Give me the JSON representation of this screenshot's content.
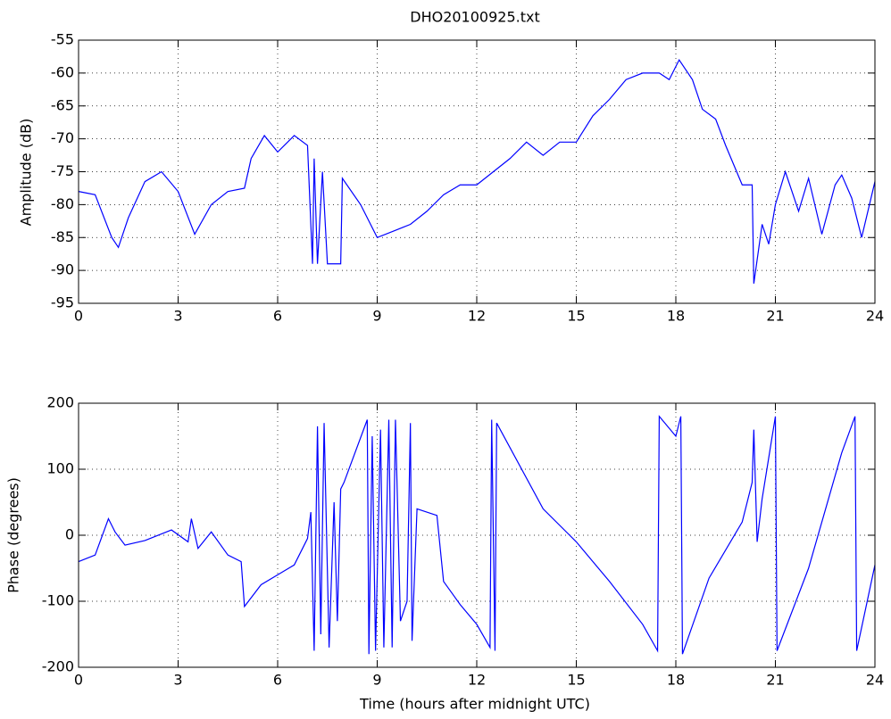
{
  "chart_data": [
    {
      "type": "line",
      "title": "DHO20100925.txt",
      "y_label": "Amplitude (dB)",
      "color": "#0000ff",
      "grid": true,
      "xlim": [
        0,
        24
      ],
      "xticks": [
        0,
        3,
        6,
        9,
        12,
        15,
        18,
        21,
        24
      ],
      "ylim": [
        -95,
        -55
      ],
      "yticks": [
        -95,
        -90,
        -85,
        -80,
        -75,
        -70,
        -65,
        -60,
        -55
      ],
      "x": [
        0,
        0.5,
        1.0,
        1.2,
        1.5,
        2.0,
        2.5,
        3.0,
        3.5,
        4.0,
        4.5,
        5.0,
        5.2,
        5.6,
        6.0,
        6.5,
        6.9,
        7.05,
        7.1,
        7.2,
        7.35,
        7.5,
        7.9,
        7.95,
        8.5,
        9.0,
        9.5,
        10.0,
        10.5,
        11.0,
        11.5,
        12.0,
        12.5,
        13.0,
        13.5,
        14.0,
        14.5,
        15.0,
        15.5,
        16.0,
        16.5,
        17.0,
        17.5,
        17.8,
        18.1,
        18.5,
        18.8,
        19.2,
        19.5,
        20.0,
        20.3,
        20.35,
        20.6,
        20.8,
        21.0,
        21.3,
        21.7,
        22.0,
        22.4,
        22.8,
        23.0,
        23.3,
        23.6,
        24.0
      ],
      "values": [
        -78,
        -78.5,
        -85,
        -86.5,
        -82,
        -76.5,
        -75,
        -78,
        -84.5,
        -80,
        -78,
        -77.5,
        -73,
        -69.5,
        -72,
        -69.5,
        -71,
        -89,
        -73,
        -89,
        -75,
        -89,
        -89,
        -76,
        -80,
        -85,
        -84,
        -83,
        -81,
        -78.5,
        -77,
        -77,
        -75,
        -73,
        -70.5,
        -72.5,
        -70.5,
        -70.5,
        -66.5,
        -64,
        -61,
        -60,
        -60,
        -61,
        -58,
        -61,
        -65.5,
        -67,
        -71,
        -77,
        -77,
        -92,
        -83,
        -86,
        -80,
        -75,
        -81,
        -76,
        -84.5,
        -77,
        -75.5,
        -79,
        -85,
        -76.5
      ]
    },
    {
      "type": "line",
      "x_label": "Time (hours after midnight UTC)",
      "y_label": "Phase (degrees)",
      "color": "#0000ff",
      "grid": true,
      "xlim": [
        0,
        24
      ],
      "xticks": [
        0,
        3,
        6,
        9,
        12,
        15,
        18,
        21,
        24
      ],
      "ylim": [
        -200,
        200
      ],
      "yticks": [
        -200,
        -100,
        0,
        100,
        200
      ],
      "x": [
        0,
        0.5,
        0.9,
        1.1,
        1.4,
        2.0,
        2.8,
        3.3,
        3.4,
        3.6,
        4.0,
        4.5,
        4.9,
        5.0,
        5.5,
        6.0,
        6.5,
        6.9,
        7.0,
        7.1,
        7.2,
        7.3,
        7.4,
        7.55,
        7.7,
        7.8,
        7.9,
        8.0,
        8.7,
        8.75,
        8.85,
        8.95,
        9.1,
        9.2,
        9.35,
        9.45,
        9.55,
        9.7,
        9.9,
        10.0,
        10.05,
        10.2,
        10.8,
        11.0,
        11.5,
        12.0,
        12.4,
        12.45,
        12.55,
        12.6,
        14.0,
        15.0,
        16.0,
        17.0,
        17.45,
        17.5,
        18.0,
        18.15,
        18.2,
        19.0,
        20.0,
        20.3,
        20.35,
        20.45,
        20.6,
        21.0,
        21.05,
        22.0,
        23.0,
        23.4,
        23.45,
        24.0
      ],
      "values": [
        -40,
        -30,
        25,
        5,
        -15,
        -8,
        8,
        -10,
        25,
        -20,
        5,
        -30,
        -40,
        -108,
        -75,
        -60,
        -45,
        -5,
        35,
        -175,
        165,
        -150,
        170,
        -170,
        50,
        -130,
        70,
        80,
        175,
        -180,
        150,
        -175,
        160,
        -170,
        175,
        -170,
        175,
        -130,
        -100,
        170,
        -160,
        40,
        30,
        -70,
        -105,
        -135,
        -170,
        175,
        -175,
        170,
        40,
        -10,
        -70,
        -135,
        -175,
        180,
        150,
        180,
        -180,
        -65,
        20,
        80,
        160,
        -10,
        55,
        180,
        -175,
        -50,
        125,
        180,
        -175,
        -45
      ]
    }
  ]
}
